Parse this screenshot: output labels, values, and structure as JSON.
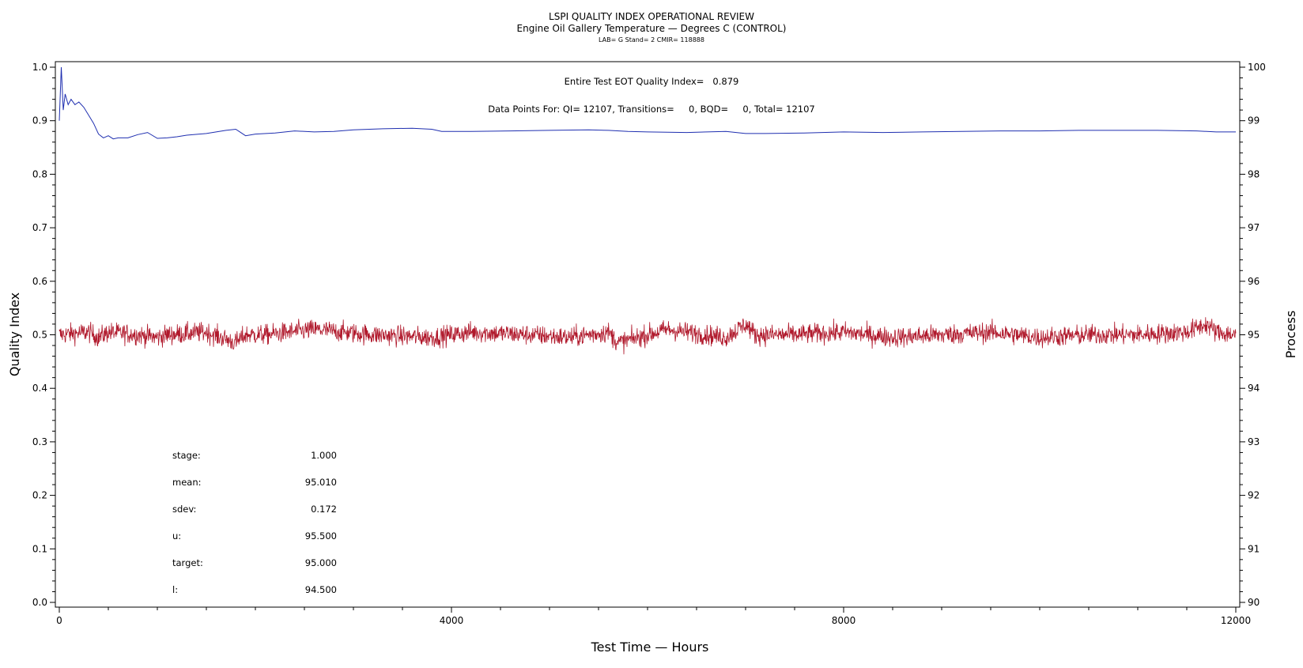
{
  "chart_data": {
    "type": "line",
    "title": "LSPI QUALITY INDEX OPERATIONAL REVIEW",
    "subtitle": "Engine Oil Gallery Temperature — Degrees C (CONTROL)",
    "subsubtitle": "LAB= G Stand= 2 CMIR= 118888",
    "annotations": {
      "quality_index_line": "Entire Test EOT Quality Index=   0.879",
      "data_points_line": "Data Points For: QI= 12107, Transitions=     0, BQD=     0, Total= 12107"
    },
    "xlabel": "Test Time — Hours",
    "ylabel_left": "Quality Index",
    "ylabel_right": "Process",
    "xlim": [
      0,
      12000
    ],
    "ylim_left": [
      0.0,
      1.0
    ],
    "ylim_right": [
      90,
      100
    ],
    "x_ticks": [
      "0",
      "4000",
      "8000",
      "12000"
    ],
    "x_tick_values": [
      0,
      4000,
      8000,
      12000
    ],
    "y_left_ticks": [
      "0.0",
      "0.1",
      "0.2",
      "0.3",
      "0.4",
      "0.5",
      "0.6",
      "0.7",
      "0.8",
      "0.9",
      "1.0"
    ],
    "y_left_tick_values": [
      0.0,
      0.1,
      0.2,
      0.3,
      0.4,
      0.5,
      0.6,
      0.7,
      0.8,
      0.9,
      1.0
    ],
    "y_right_ticks": [
      "90",
      "91",
      "92",
      "93",
      "94",
      "95",
      "96",
      "97",
      "98",
      "99",
      "100"
    ],
    "y_right_tick_values": [
      90,
      91,
      92,
      93,
      94,
      95,
      96,
      97,
      98,
      99,
      100
    ],
    "grid": false,
    "series": [
      {
        "axis": "left",
        "color": "#1f2fb0",
        "x": [
          0,
          20,
          40,
          60,
          90,
          120,
          160,
          200,
          250,
          300,
          350,
          400,
          450,
          500,
          550,
          600,
          700,
          800,
          900,
          1000,
          1100,
          1200,
          1300,
          1500,
          1700,
          1800,
          1850,
          1900,
          2000,
          2200,
          2400,
          2600,
          2800,
          3000,
          3300,
          3600,
          3800,
          3900,
          4200,
          4600,
          5000,
          5400,
          5600,
          5800,
          6000,
          6400,
          6800,
          7000,
          7200,
          7600,
          8000,
          8400,
          8800,
          9200,
          9600,
          10000,
          10400,
          10800,
          11200,
          11600,
          11800,
          12000
        ],
        "values": [
          0.9,
          1.0,
          0.92,
          0.95,
          0.93,
          0.94,
          0.93,
          0.935,
          0.925,
          0.91,
          0.895,
          0.875,
          0.868,
          0.872,
          0.866,
          0.868,
          0.868,
          0.874,
          0.878,
          0.867,
          0.868,
          0.87,
          0.873,
          0.876,
          0.882,
          0.884,
          0.878,
          0.872,
          0.875,
          0.877,
          0.881,
          0.879,
          0.88,
          0.883,
          0.885,
          0.886,
          0.884,
          0.88,
          0.88,
          0.881,
          0.882,
          0.883,
          0.882,
          0.88,
          0.879,
          0.878,
          0.88,
          0.876,
          0.876,
          0.877,
          0.879,
          0.878,
          0.879,
          0.88,
          0.881,
          0.881,
          0.882,
          0.882,
          0.882,
          0.881,
          0.879,
          0.879
        ]
      },
      {
        "axis": "right",
        "color": "#b0182b",
        "mean": 95.01,
        "sdev": 0.172,
        "n_points": 12107,
        "x": [
          0,
          300,
          400,
          500,
          800,
          1000,
          1100,
          1500,
          1800,
          1900,
          2100,
          2600,
          3200,
          3800,
          4200,
          4800,
          5200,
          5600,
          5700,
          6200,
          6800,
          7000,
          7100,
          7500,
          8000,
          8500,
          9000,
          9500,
          10000,
          10500,
          11000,
          11500,
          11700,
          11800,
          12000
        ],
        "values": [
          95.0,
          95.05,
          94.95,
          95.05,
          95.0,
          94.95,
          95.0,
          95.05,
          94.85,
          95.0,
          95.0,
          95.1,
          95.0,
          94.95,
          95.05,
          95.0,
          94.95,
          95.05,
          94.85,
          95.1,
          94.95,
          95.2,
          95.0,
          95.0,
          95.05,
          94.95,
          95.0,
          95.05,
          94.95,
          95.0,
          95.0,
          95.05,
          95.2,
          95.05,
          95.0
        ]
      }
    ],
    "stats": [
      {
        "label": "stage:",
        "value": "1.000"
      },
      {
        "label": "mean:",
        "value": "95.010"
      },
      {
        "label": "sdev:",
        "value": "0.172"
      },
      {
        "label": "u:",
        "value": "95.500"
      },
      {
        "label": "target:",
        "value": "95.000"
      },
      {
        "label": "l:",
        "value": "94.500"
      }
    ]
  }
}
